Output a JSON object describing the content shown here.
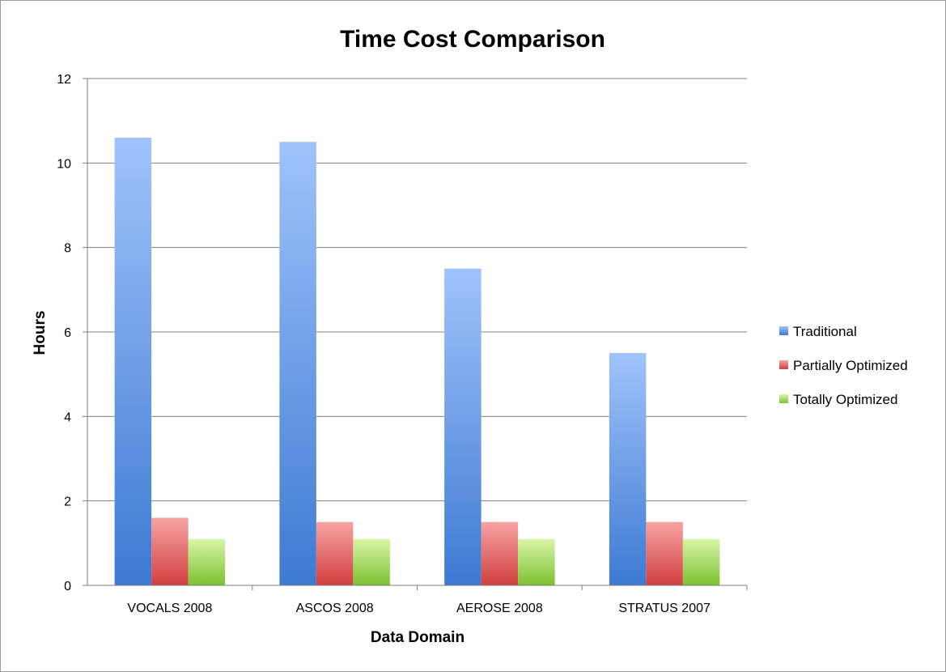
{
  "chart_data": {
    "type": "bar",
    "title": "Time Cost Comparison",
    "xlabel": "Data Domain",
    "ylabel": "Hours",
    "ylim": [
      0,
      12
    ],
    "yticks": [
      0,
      2,
      4,
      6,
      8,
      10,
      12
    ],
    "grid": true,
    "legend_position": "right",
    "categories": [
      "VOCALS 2008",
      "ASCOS 2008",
      "AEROSE 2008",
      "STRATUS 2007"
    ],
    "series": [
      {
        "name": "Traditional",
        "values": [
          10.6,
          10.5,
          7.5,
          5.5
        ],
        "color": "#4f86d8"
      },
      {
        "name": "Partially Optimized",
        "values": [
          1.6,
          1.5,
          1.5,
          1.5
        ],
        "color": "#e05555"
      },
      {
        "name": "Totally Optimized",
        "values": [
          1.1,
          1.1,
          1.1,
          1.1
        ],
        "color": "#8ccf3e"
      }
    ]
  }
}
